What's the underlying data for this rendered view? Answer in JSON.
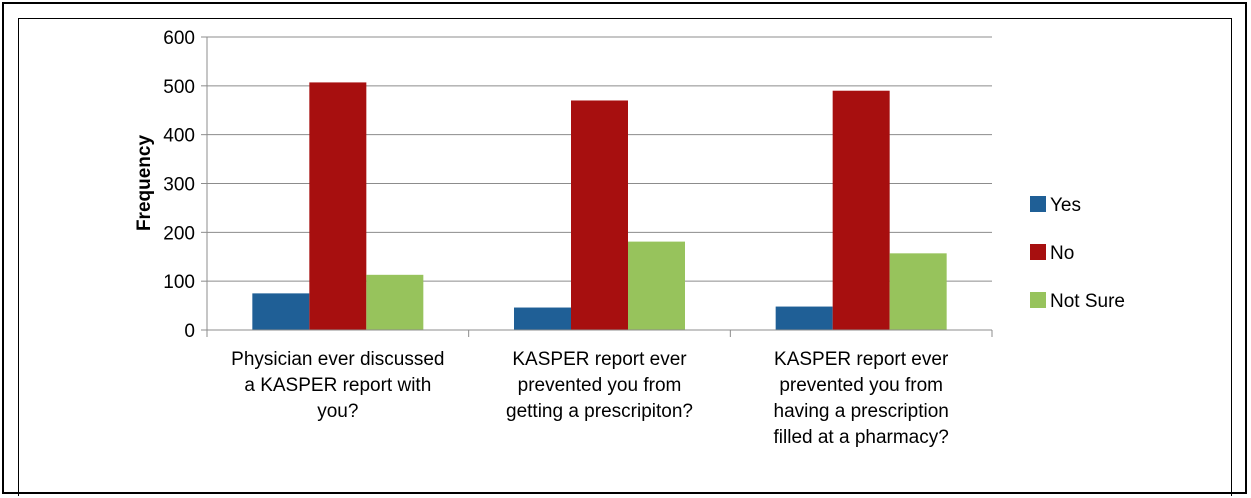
{
  "chart_data": {
    "type": "bar",
    "title": "",
    "xlabel": "",
    "ylabel": "Frequency",
    "ylim": [
      0,
      600
    ],
    "yticks": [
      0,
      100,
      200,
      300,
      400,
      500,
      600
    ],
    "grid": true,
    "legend_position": "right",
    "categories": [
      [
        "Physician ever discussed",
        "a KASPER report with",
        "you?"
      ],
      [
        "KASPER report  ever",
        "prevented you from",
        "getting a prescripiton?"
      ],
      [
        "KASPER report  ever",
        "prevented you from",
        "having a prescription",
        "filled at a pharmacy?"
      ]
    ],
    "series": [
      {
        "name": "Yes",
        "color": "#1f5f96",
        "values": [
          75,
          46,
          48
        ]
      },
      {
        "name": "No",
        "color": "#a70f0f",
        "values": [
          507,
          470,
          490
        ]
      },
      {
        "name": "Not Sure",
        "color": "#97c35c",
        "values": [
          113,
          181,
          157
        ]
      }
    ]
  }
}
